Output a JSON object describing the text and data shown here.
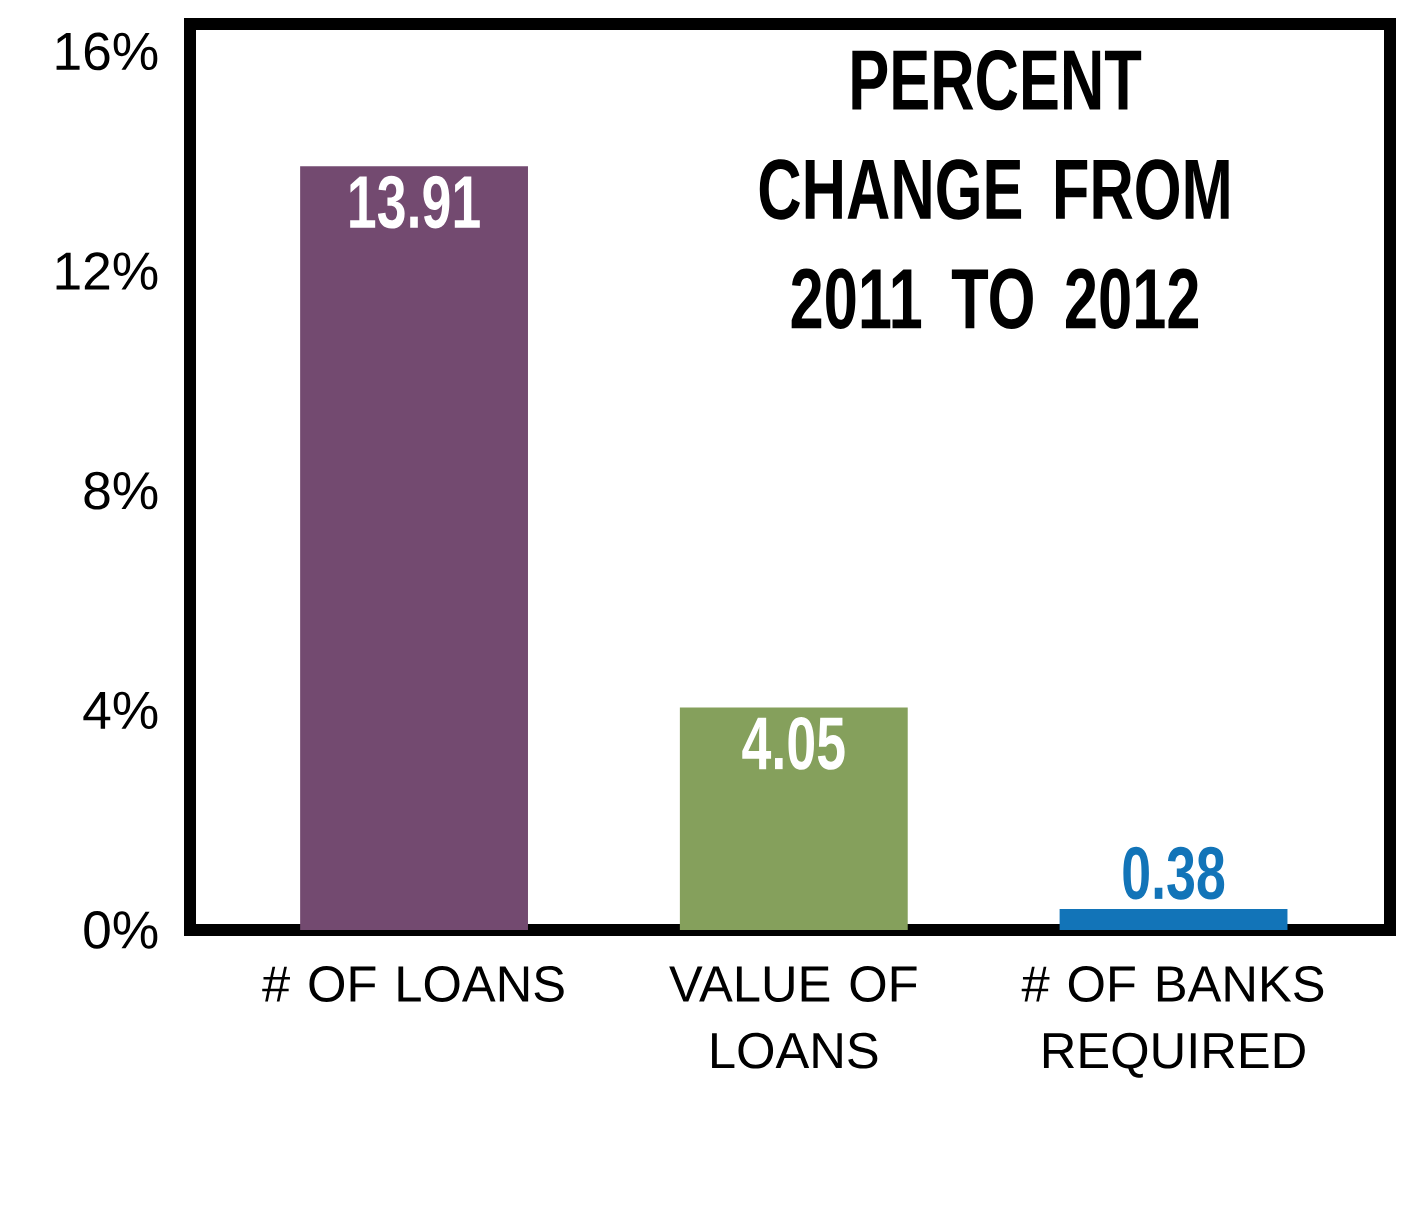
{
  "chart_data": {
    "type": "bar",
    "title": "PERCENT CHANGE FROM 2011 TO 2012",
    "categories": [
      "# OF LOANS",
      "VALUE OF LOANS",
      "# OF BANKS REQUIRED"
    ],
    "values": [
      13.91,
      4.05,
      0.38
    ],
    "colors": [
      "#734a70",
      "#85a05c",
      "#1274b8"
    ],
    "value_labels": [
      "13.91",
      "4.05",
      "0.38"
    ],
    "ylim": [
      0,
      16.5
    ],
    "yticks": [
      {
        "value": 0,
        "label": "0%"
      },
      {
        "value": 4,
        "label": "4%"
      },
      {
        "value": 8,
        "label": "8%"
      },
      {
        "value": 12,
        "label": "12%"
      },
      {
        "value": 16,
        "label": "16%"
      }
    ],
    "grid": false
  }
}
